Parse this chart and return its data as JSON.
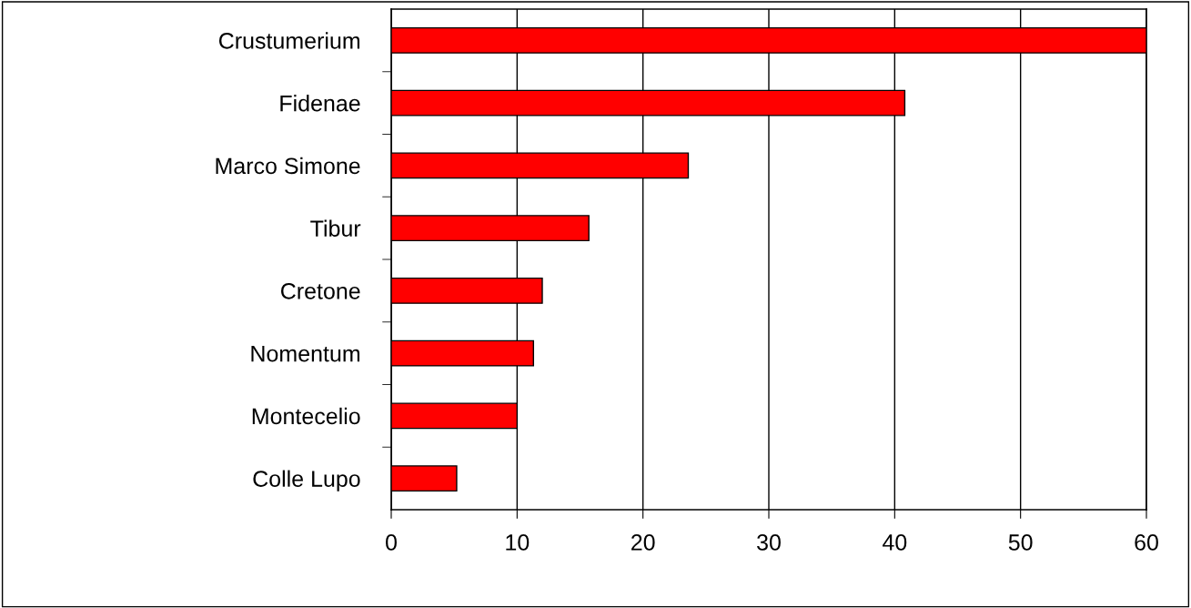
{
  "chart_data": {
    "type": "bar",
    "orientation": "horizontal",
    "categories": [
      "Crustumerium",
      "Fidenae",
      "Marco Simone",
      "Tibur",
      "Cretone",
      "Nomentum",
      "Montecelio",
      "Colle Lupo"
    ],
    "values": [
      60,
      40.8,
      23.6,
      15.7,
      12.0,
      11.3,
      10.0,
      5.2
    ],
    "color": "#ff0000",
    "xlim": [
      0,
      60
    ],
    "xticks": [
      0,
      10,
      20,
      30,
      40,
      50,
      60
    ],
    "grid": "x",
    "legend": false
  }
}
